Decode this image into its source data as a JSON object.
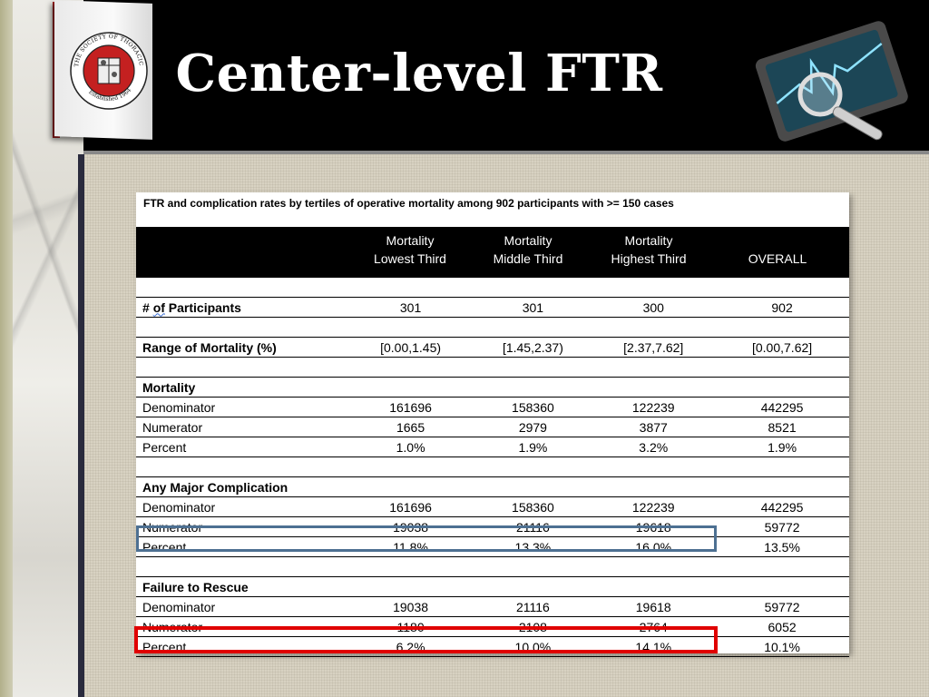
{
  "slide": {
    "title": "Center-level FTR"
  },
  "seal": {
    "text_top": "THE SOCIETY OF THORACIC SURGEONS",
    "text_bottom": "Established 1964"
  },
  "table": {
    "caption": "FTR and complication rates by tertiles of operative mortality among 902 participants with >= 150 cases",
    "columns": [
      {
        "line1": "Mortality",
        "line2": "Lowest Third"
      },
      {
        "line1": "Mortality",
        "line2": "Middle Third"
      },
      {
        "line1": "Mortality",
        "line2": "Highest Third"
      },
      {
        "line1": "",
        "line2": "OVERALL"
      }
    ],
    "participants": {
      "label": "# of Participants",
      "values": [
        "301",
        "301",
        "300",
        "902"
      ]
    },
    "range": {
      "label": "Range of Mortality (%)",
      "values": [
        "[0.00,1.45)",
        "[1.45,2.37)",
        "[2.37,7.62]",
        "[0.00,7.62]"
      ]
    },
    "sections": [
      {
        "title": "Mortality",
        "rows": [
          {
            "label": "Denominator",
            "values": [
              "161696",
              "158360",
              "122239",
              "442295"
            ]
          },
          {
            "label": "Numerator",
            "values": [
              "1665",
              "2979",
              "3877",
              "8521"
            ]
          },
          {
            "label": "Percent",
            "values": [
              "1.0%",
              "1.9%",
              "3.2%",
              "1.9%"
            ]
          }
        ]
      },
      {
        "title": "Any Major Complication",
        "rows": [
          {
            "label": "Denominator",
            "values": [
              "161696",
              "158360",
              "122239",
              "442295"
            ]
          },
          {
            "label": "Numerator",
            "values": [
              "19038",
              "21116",
              "19618",
              "59772"
            ]
          },
          {
            "label": "Percent",
            "values": [
              "11.8%",
              "13.3%",
              "16.0%",
              "13.5%"
            ]
          }
        ]
      },
      {
        "title": "Failure to Rescue",
        "rows": [
          {
            "label": "Denominator",
            "values": [
              "19038",
              "21116",
              "19618",
              "59772"
            ]
          },
          {
            "label": "Numerator",
            "values": [
              "1180",
              "2108",
              "2764",
              "6052"
            ]
          },
          {
            "label": "Percent",
            "values": [
              "6.2%",
              "10.0%",
              "14.1%",
              "10.1%"
            ]
          }
        ]
      }
    ]
  },
  "highlights": {
    "complication_percent_color": "#4d7092",
    "ftr_percent_color": "#e00000"
  }
}
